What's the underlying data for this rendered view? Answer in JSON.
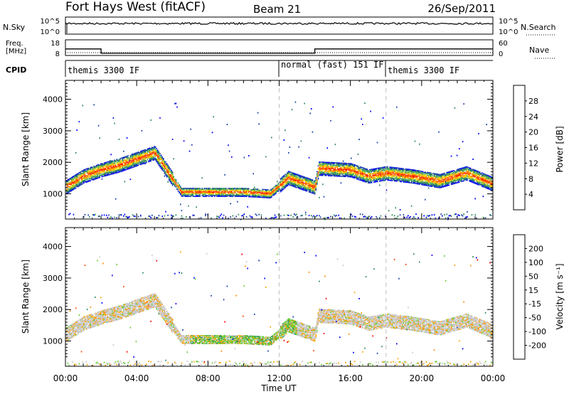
{
  "header": {
    "radar": "Fort Hays West (fitACF)",
    "beam": "Beam 21",
    "date": "26/Sep/2011"
  },
  "noise_panel": {
    "left_label": "N.Sky",
    "right_label": "N.Search",
    "left_ticks": [
      "10^5",
      "10^0"
    ],
    "right_ticks": [
      "10^5",
      "10^0"
    ]
  },
  "freq_panel": {
    "left_label_line1": "Freq.",
    "left_label_line2": "[MHz]",
    "right_label": "Nave",
    "left_ticks": [
      "18",
      "8"
    ],
    "right_ticks": [
      "60",
      "0"
    ]
  },
  "cpid_panel": {
    "label": "CPID",
    "segments": [
      {
        "start_hour": 0,
        "end_hour": 12,
        "text": "themis 3300 IF"
      },
      {
        "start_hour": 12,
        "end_hour": 18,
        "text": "normal (fast) 151 IF"
      },
      {
        "start_hour": 18,
        "end_hour": 24,
        "text": "themis 3300 IF"
      }
    ]
  },
  "time_axis": {
    "xlabel": "Time UT",
    "ticks": [
      "00:00",
      "04:00",
      "08:00",
      "12:00",
      "16:00",
      "20:00",
      "00:00"
    ]
  },
  "power_panel": {
    "ylabel": "Slant Range [km]",
    "yticks": [
      "1000",
      "2000",
      "3000",
      "4000"
    ],
    "colorbar_label": "Power [dB]",
    "colorbar_ticks": [
      "4",
      "8",
      "12",
      "16",
      "20",
      "24",
      "28"
    ]
  },
  "velocity_panel": {
    "ylabel": "Slant Range [km]",
    "yticks": [
      "1000",
      "2000",
      "3000",
      "4000"
    ],
    "colorbar_label": "Velocity [m s⁻¹]",
    "colorbar_ticks": [
      "200",
      "100",
      "50",
      "15",
      "-15",
      "-50",
      "-100",
      "-200"
    ]
  },
  "chart_data": {
    "type": "heatmap",
    "x_axis": {
      "label": "Time UT",
      "range_hours": [
        0,
        24
      ]
    },
    "y_axis": {
      "label": "Slant Range [km]",
      "range_km": [
        200,
        4600
      ]
    },
    "frequency_mhz": [
      {
        "start_hour": 0,
        "end_hour": 2,
        "value": 14
      },
      {
        "start_hour": 2,
        "end_hour": 14,
        "value": 10
      },
      {
        "start_hour": 14,
        "end_hour": 24,
        "value": 14
      }
    ],
    "nave": 6,
    "scatter_band_center_km": [
      [
        0,
        1200
      ],
      [
        1,
        1550
      ],
      [
        2,
        1750
      ],
      [
        3,
        1900
      ],
      [
        4,
        2100
      ],
      [
        5,
        2300
      ],
      [
        6.5,
        1050
      ],
      [
        8,
        1050
      ],
      [
        10,
        1050
      ],
      [
        11.5,
        1000
      ],
      [
        12.5,
        1500
      ],
      [
        13,
        1400
      ],
      [
        14,
        1200
      ],
      [
        14.2,
        1800
      ],
      [
        16,
        1750
      ],
      [
        17,
        1550
      ],
      [
        18,
        1650
      ],
      [
        19.5,
        1550
      ],
      [
        21,
        1400
      ],
      [
        22.5,
        1650
      ],
      [
        24,
        1300
      ]
    ],
    "power_colorscale_db": [
      0,
      32
    ],
    "velocity_colorscale_ms": [
      -250,
      250
    ]
  },
  "colors": {
    "power": [
      "#0000ff",
      "#1c3fa8",
      "#2e8b57",
      "#5fb85f",
      "#ffd700",
      "#ff8c00",
      "#ff4500",
      "#ff0000"
    ],
    "velocity": [
      "#ff0000",
      "#ff4500",
      "#ff8c00",
      "#ffa500",
      "#c8c8c8",
      "#66cc33",
      "#2e8b57",
      "#1c3fa8",
      "#0000ff"
    ]
  }
}
